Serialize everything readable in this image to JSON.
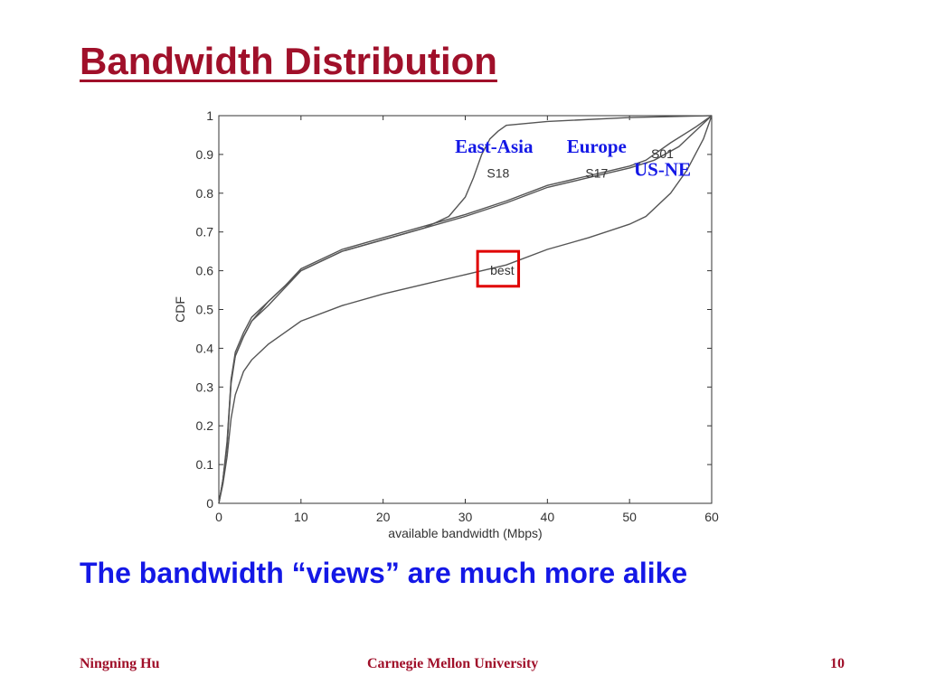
{
  "slide": {
    "title": "Bandwidth Distribution",
    "caption": "The bandwidth “views” are much more alike",
    "footer": {
      "left": "Ningning Hu",
      "center": "Carnegie Mellon University",
      "right": "10"
    }
  },
  "colors": {
    "title": "#a0102a",
    "caption": "#1418e6",
    "overlay_label": "#1418e6",
    "highlight_box": "#e00000",
    "curve": "#555555"
  },
  "chart_data": {
    "type": "line",
    "xlabel": "available bandwidth (Mbps)",
    "ylabel": "CDF",
    "xlim": [
      0,
      60
    ],
    "ylim": [
      0,
      1
    ],
    "x_ticks": [
      0,
      10,
      20,
      30,
      40,
      50,
      60
    ],
    "y_ticks": [
      0,
      0.1,
      0.2,
      0.3,
      0.4,
      0.5,
      0.6,
      0.7,
      0.8,
      0.9,
      1
    ],
    "grid": false,
    "series": [
      {
        "name": "S18",
        "points": [
          [
            0,
            0
          ],
          [
            0.5,
            0.06
          ],
          [
            1,
            0.15
          ],
          [
            1.5,
            0.32
          ],
          [
            2,
            0.38
          ],
          [
            3,
            0.43
          ],
          [
            4,
            0.47
          ],
          [
            6,
            0.52
          ],
          [
            8,
            0.56
          ],
          [
            10,
            0.6
          ],
          [
            15,
            0.65
          ],
          [
            20,
            0.68
          ],
          [
            25,
            0.71
          ],
          [
            28,
            0.74
          ],
          [
            30,
            0.79
          ],
          [
            31,
            0.84
          ],
          [
            32,
            0.9
          ],
          [
            33,
            0.94
          ],
          [
            34,
            0.96
          ],
          [
            35,
            0.975
          ],
          [
            40,
            0.985
          ],
          [
            50,
            0.995
          ],
          [
            60,
            1
          ]
        ]
      },
      {
        "name": "S17",
        "points": [
          [
            0,
            0
          ],
          [
            0.5,
            0.06
          ],
          [
            1,
            0.16
          ],
          [
            1.5,
            0.32
          ],
          [
            2,
            0.39
          ],
          [
            3,
            0.44
          ],
          [
            4,
            0.48
          ],
          [
            6,
            0.52
          ],
          [
            8,
            0.56
          ],
          [
            10,
            0.605
          ],
          [
            15,
            0.655
          ],
          [
            20,
            0.685
          ],
          [
            25,
            0.715
          ],
          [
            30,
            0.745
          ],
          [
            35,
            0.78
          ],
          [
            40,
            0.82
          ],
          [
            45,
            0.845
          ],
          [
            50,
            0.87
          ],
          [
            52,
            0.885
          ],
          [
            55,
            0.93
          ],
          [
            58,
            0.97
          ],
          [
            60,
            1
          ]
        ]
      },
      {
        "name": "S01",
        "points": [
          [
            0,
            0
          ],
          [
            0.5,
            0.06
          ],
          [
            1,
            0.15
          ],
          [
            1.5,
            0.31
          ],
          [
            2,
            0.38
          ],
          [
            3,
            0.43
          ],
          [
            4,
            0.47
          ],
          [
            6,
            0.51
          ],
          [
            8,
            0.555
          ],
          [
            10,
            0.6
          ],
          [
            15,
            0.65
          ],
          [
            20,
            0.68
          ],
          [
            25,
            0.71
          ],
          [
            30,
            0.74
          ],
          [
            35,
            0.775
          ],
          [
            40,
            0.815
          ],
          [
            45,
            0.84
          ],
          [
            50,
            0.865
          ],
          [
            53,
            0.885
          ],
          [
            56,
            0.92
          ],
          [
            58,
            0.96
          ],
          [
            60,
            1
          ]
        ]
      },
      {
        "name": "best",
        "points": [
          [
            0,
            0
          ],
          [
            0.5,
            0.05
          ],
          [
            1,
            0.12
          ],
          [
            1.5,
            0.22
          ],
          [
            2,
            0.28
          ],
          [
            3,
            0.34
          ],
          [
            4,
            0.37
          ],
          [
            6,
            0.41
          ],
          [
            8,
            0.44
          ],
          [
            10,
            0.47
          ],
          [
            15,
            0.51
          ],
          [
            20,
            0.54
          ],
          [
            25,
            0.565
          ],
          [
            30,
            0.59
          ],
          [
            35,
            0.615
          ],
          [
            40,
            0.655
          ],
          [
            45,
            0.685
          ],
          [
            50,
            0.72
          ],
          [
            52,
            0.74
          ],
          [
            55,
            0.8
          ],
          [
            57,
            0.86
          ],
          [
            59,
            0.94
          ],
          [
            60,
            1
          ]
        ]
      }
    ],
    "curve_labels": [
      {
        "text": "S18",
        "x": 34,
        "y": 0.84
      },
      {
        "text": "S17",
        "x": 46,
        "y": 0.84
      },
      {
        "text": "S01",
        "x": 54,
        "y": 0.89
      },
      {
        "text": "best",
        "x": 34.5,
        "y": 0.59
      }
    ],
    "overlay_labels": [
      {
        "text": "East-Asia",
        "x": 33.5,
        "y": 0.905
      },
      {
        "text": "Europe",
        "x": 46,
        "y": 0.905
      },
      {
        "text": "US-NE",
        "x": 54,
        "y": 0.845
      }
    ],
    "highlight": {
      "x_range": [
        31.5,
        36.5
      ],
      "y_range": [
        0.56,
        0.65
      ]
    }
  }
}
